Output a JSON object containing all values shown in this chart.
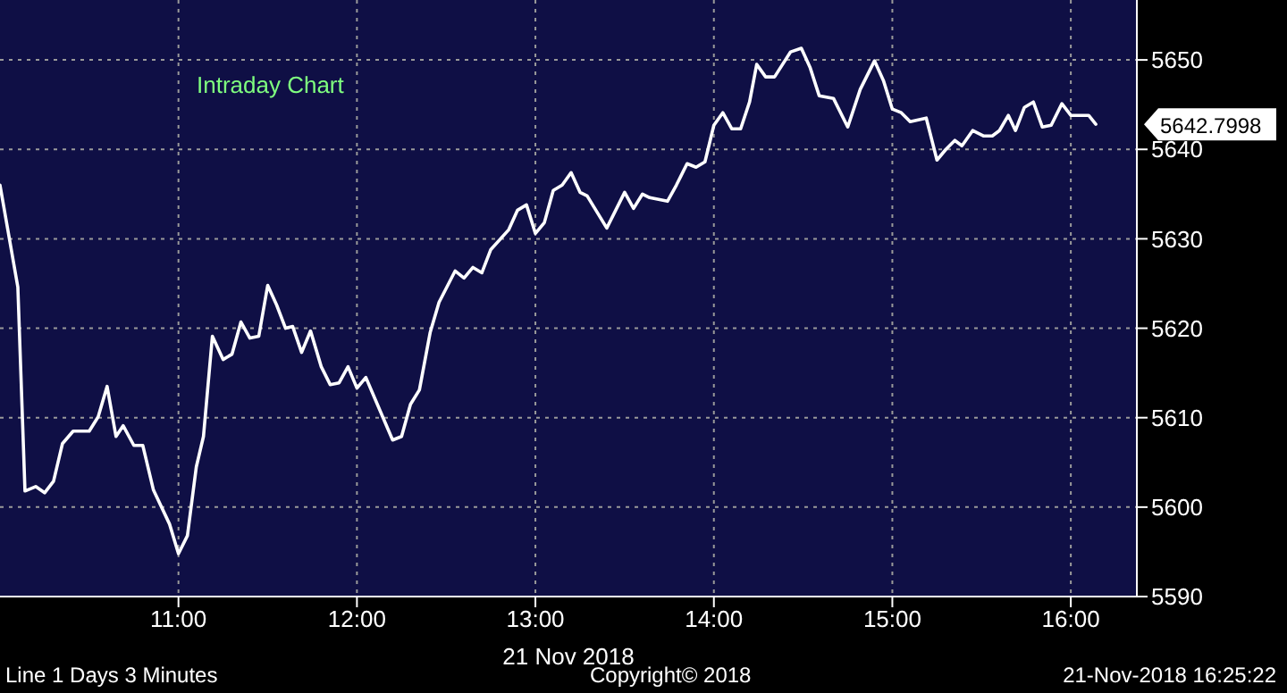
{
  "chart_data": {
    "type": "line",
    "title": "Intraday Chart",
    "xlabel": "21 Nov 2018",
    "x": [
      10.0,
      10.1,
      10.14,
      10.2,
      10.25,
      10.3,
      10.35,
      10.41,
      10.5,
      10.55,
      10.6,
      10.65,
      10.69,
      10.75,
      10.8,
      10.86,
      10.95,
      11.0,
      11.05,
      11.1,
      11.14,
      11.19,
      11.25,
      11.3,
      11.35,
      11.4,
      11.45,
      11.5,
      11.55,
      11.6,
      11.64,
      11.69,
      11.74,
      11.8,
      11.85,
      11.9,
      11.95,
      12.0,
      12.05,
      12.11,
      12.2,
      12.25,
      12.3,
      12.35,
      12.41,
      12.46,
      12.55,
      12.6,
      12.65,
      12.7,
      12.75,
      12.85,
      12.9,
      12.95,
      13.0,
      13.05,
      13.1,
      13.15,
      13.2,
      13.25,
      13.29,
      13.4,
      13.5,
      13.55,
      13.6,
      13.64,
      13.74,
      13.79,
      13.85,
      13.9,
      13.95,
      14.0,
      14.05,
      14.1,
      14.15,
      14.2,
      14.24,
      14.29,
      14.34,
      14.43,
      14.49,
      14.54,
      14.59,
      14.67,
      14.75,
      14.82,
      14.9,
      14.95,
      15.0,
      15.05,
      15.1,
      15.19,
      15.25,
      15.3,
      15.35,
      15.39,
      15.45,
      15.51,
      15.56,
      15.6,
      15.65,
      15.69,
      15.74,
      15.79,
      15.84,
      15.89,
      15.95,
      16.0,
      16.1,
      16.14
    ],
    "series": [
      {
        "color": "#ffffff",
        "values": [
          5636,
          5624.6,
          5601.8,
          5602.3,
          5601.6,
          5602.9,
          5607.1,
          5608.5,
          5608.5,
          5610.1,
          5613.5,
          5607.9,
          5609.1,
          5606.9,
          5606.9,
          5601.9,
          5598.1,
          5594.8,
          5596.8,
          5604.5,
          5607.9,
          5619.1,
          5616.5,
          5617.1,
          5620.7,
          5618.9,
          5619.1,
          5624.8,
          5622.6,
          5620,
          5620.2,
          5617.3,
          5619.7,
          5615.7,
          5613.7,
          5613.9,
          5615.7,
          5613.3,
          5614.5,
          5611.7,
          5607.5,
          5607.9,
          5611.5,
          5613.1,
          5619.5,
          5622.9,
          5626.4,
          5625.6,
          5626.8,
          5626.2,
          5628.8,
          5631,
          5633.2,
          5633.8,
          5630.6,
          5631.8,
          5635.4,
          5636,
          5637.4,
          5635.2,
          5634.8,
          5631.2,
          5635.2,
          5633.4,
          5635,
          5634.6,
          5634.2,
          5636,
          5638.4,
          5638,
          5638.6,
          5642.7,
          5644.1,
          5642.3,
          5642.3,
          5645.3,
          5649.5,
          5648.1,
          5648.1,
          5650.9,
          5651.3,
          5649.1,
          5646,
          5645.7,
          5642.5,
          5646.7,
          5649.9,
          5647.7,
          5644.5,
          5644.1,
          5643.1,
          5643.5,
          5638.8,
          5640,
          5641,
          5640.4,
          5642.1,
          5641.5,
          5641.5,
          5642.1,
          5643.8,
          5642.1,
          5644.7,
          5645.3,
          5642.5,
          5642.7,
          5645.1,
          5643.8,
          5643.8,
          5642.8
        ]
      }
    ],
    "xlim": [
      10,
      16.37
    ],
    "xticks": [
      {
        "value": 11,
        "label": "11:00"
      },
      {
        "value": 12,
        "label": "12:00"
      },
      {
        "value": 13,
        "label": "13:00"
      },
      {
        "value": 14,
        "label": "14:00"
      },
      {
        "value": 15,
        "label": "15:00"
      },
      {
        "value": 16,
        "label": "16:00"
      }
    ],
    "ylim": [
      5590,
      5656.7
    ],
    "yticks": [
      5590,
      5600,
      5610,
      5620,
      5630,
      5640,
      5650
    ],
    "grid": true,
    "legend": false,
    "marker": "none",
    "line_style": "solid",
    "annotations": [
      {
        "text": "5642.7998",
        "x": 16.14,
        "y": 5642.8
      },
      "Line 1 Days 3 Minutes",
      "Copyright© 2018",
      "21-Nov-2018 16:25:22"
    ]
  }
}
